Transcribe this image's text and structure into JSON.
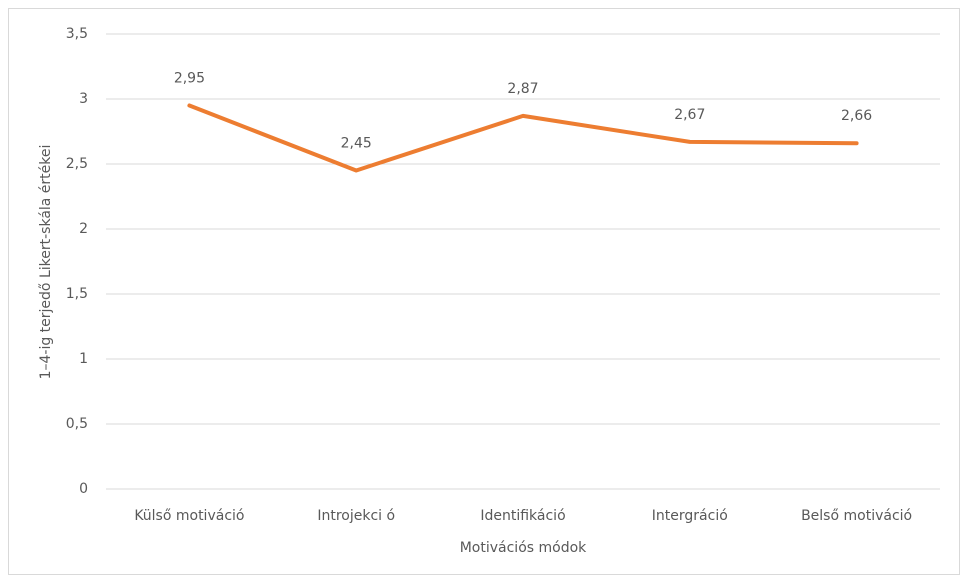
{
  "chart_data": {
    "type": "line",
    "categories": [
      "Külső motiváció",
      "Introjekci ó",
      "Identifikáció",
      "Intergráció",
      "Belső motiváció"
    ],
    "series": [
      {
        "name": "Motivációs módok",
        "color": "#ed7d31",
        "values": [
          2.95,
          2.45,
          2.87,
          2.67,
          2.66
        ],
        "value_labels": [
          "2,95",
          "2,45",
          "2,87",
          "2,67",
          "2,66"
        ]
      }
    ],
    "x_label": "Motivációs módok",
    "y_label": "1–4-ig terjedő Likert-skála értékei",
    "ylim": [
      0,
      3.5
    ],
    "yticks": [
      0,
      {
        "value": 0.5,
        "label": "0,5"
      },
      1,
      {
        "value": 1.5,
        "label": "1,5"
      },
      2,
      {
        "value": 2.5,
        "label": "2,5"
      },
      3,
      {
        "value": 3.5,
        "label": "3,5"
      }
    ],
    "grid": true
  }
}
